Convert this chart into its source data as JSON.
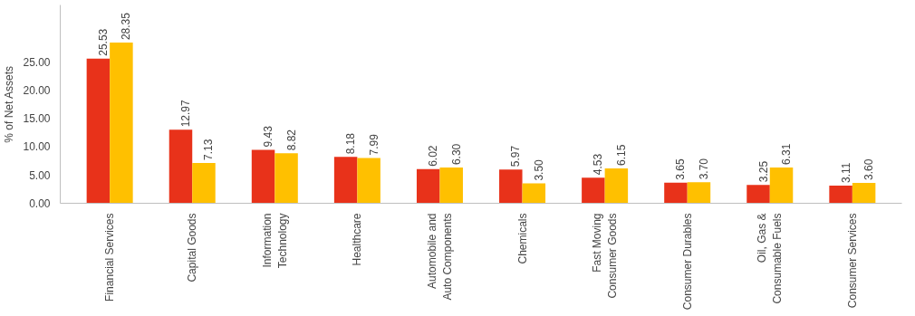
{
  "chart_data": {
    "type": "bar",
    "ylabel": "% of Net Assets",
    "categories": [
      "Financial Services",
      "Capital Goods",
      "Information\nTechnology",
      "Healthcare",
      "Automobile and\nAuto Components",
      "Chemicals",
      "Fast Moving\nConsumer Goods",
      "Consumer Durables",
      "Oil, Gas &\nConsumable Fuels",
      "Consumer Services"
    ],
    "series": [
      {
        "color": "#e8321a",
        "values": [
          25.53,
          12.97,
          9.43,
          8.18,
          6.02,
          5.97,
          4.53,
          3.65,
          3.25,
          3.11
        ],
        "value_labels": [
          "25.53",
          "12.97",
          "9.43",
          "8.18",
          "6.02",
          "5.97",
          "4.53",
          "3.65",
          "3.25",
          "3.11"
        ]
      },
      {
        "color": "#ffc000",
        "values": [
          28.35,
          7.13,
          8.82,
          7.99,
          6.3,
          3.5,
          6.15,
          3.7,
          6.31,
          3.6
        ],
        "value_labels": [
          "28.35",
          "7.13",
          "8.82",
          "7.99",
          "6.30",
          "3.50",
          "6.15",
          "3.70",
          "6.31",
          "3.60"
        ]
      }
    ],
    "ylim": [
      0,
      35
    ],
    "yticks": [
      {
        "value": 0,
        "label": "0.00"
      },
      {
        "value": 5,
        "label": "5.00"
      },
      {
        "value": 10,
        "label": "10.00"
      },
      {
        "value": 15,
        "label": "15.00"
      },
      {
        "value": 20,
        "label": "20.00"
      },
      {
        "value": 25,
        "label": "25.00"
      }
    ],
    "grid": false
  }
}
